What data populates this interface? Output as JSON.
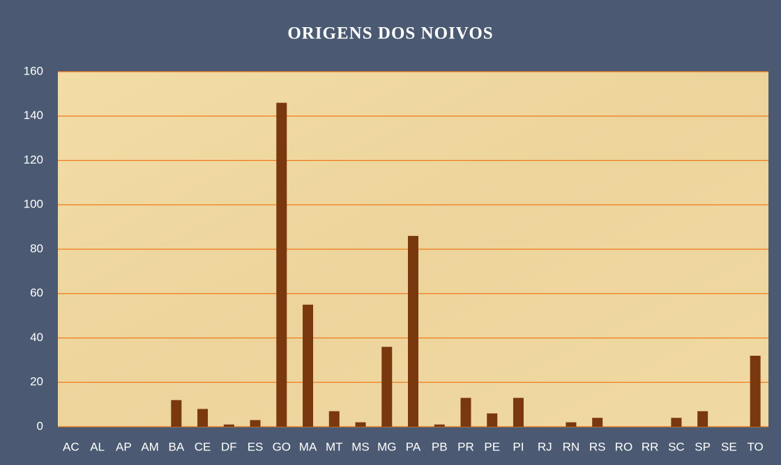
{
  "chart_data": {
    "type": "bar",
    "title": "ORIGENS DOS NOIVOS",
    "categories": [
      "AC",
      "AL",
      "AP",
      "AM",
      "BA",
      "CE",
      "DF",
      "ES",
      "GO",
      "MA",
      "MT",
      "MS",
      "MG",
      "PA",
      "PB",
      "PR",
      "PE",
      "PI",
      "RJ",
      "RN",
      "RS",
      "RO",
      "RR",
      "SC",
      "SP",
      "SE",
      "TO"
    ],
    "values": [
      0,
      0,
      0,
      0,
      12,
      8,
      1,
      3,
      146,
      55,
      7,
      2,
      36,
      86,
      1,
      13,
      6,
      13,
      0,
      2,
      4,
      0,
      0,
      4,
      7,
      0,
      32
    ],
    "color": "#7a380e",
    "ylim": [
      0,
      160
    ],
    "yticks": [
      0,
      20,
      40,
      60,
      80,
      100,
      120,
      140,
      160
    ],
    "grid": true,
    "grid_color": "#f07a1a"
  }
}
